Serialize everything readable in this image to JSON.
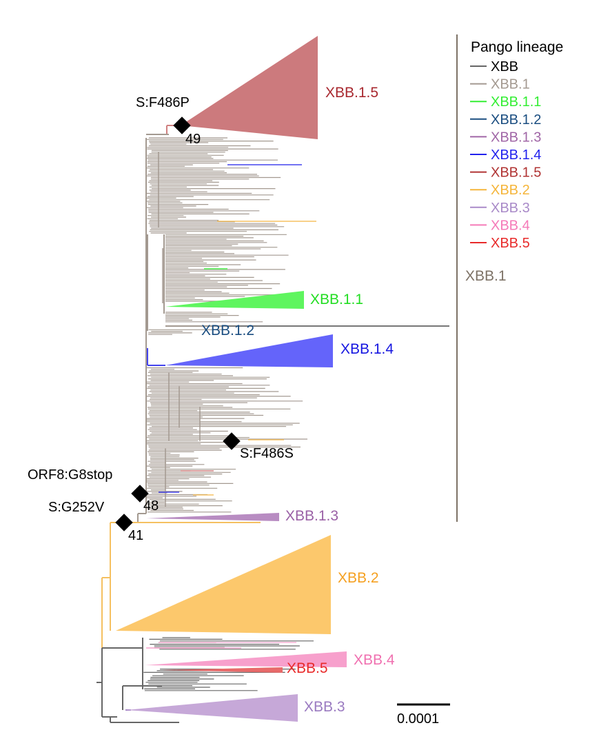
{
  "legend": {
    "title": "Pango lineage",
    "entries": [
      {
        "label": "XBB",
        "color": "#666666"
      },
      {
        "label": "XBB.1",
        "color": "#a39990"
      },
      {
        "label": "XBB.1.1",
        "color": "#33ee33"
      },
      {
        "label": "XBB.1.2",
        "color": "#1a4d80"
      },
      {
        "label": "XBB.1.3",
        "color": "#a066a6"
      },
      {
        "label": "XBB.1.4",
        "color": "#2222ee"
      },
      {
        "label": "XBB.1.5",
        "color": "#b03333"
      },
      {
        "label": "XBB.2",
        "color": "#f5b53a"
      },
      {
        "label": "XBB.3",
        "color": "#a98ac8"
      },
      {
        "label": "XBB.4",
        "color": "#f57ab8"
      },
      {
        "label": "XBB.5",
        "color": "#e82a2a"
      }
    ]
  },
  "bracket": {
    "label": "XBB.1",
    "color": "#7d7266"
  },
  "clades": {
    "xbb_1_5": {
      "label": "XBB.1.5",
      "label_color": "#a8282f",
      "fill": "#cc7a7d"
    },
    "xbb_1_1": {
      "label": "XBB.1.1",
      "label_color": "#22dd22",
      "fill": "#5ff55f"
    },
    "xbb_1_2": {
      "label": "XBB.1.2",
      "label_color": "#1a4d80"
    },
    "xbb_1_4": {
      "label": "XBB.1.4",
      "label_color": "#1515e0",
      "fill": "#6464fa"
    },
    "xbb_1_3": {
      "label": "XBB.1.3",
      "label_color": "#9a60a6",
      "fill": "#b88cc2"
    },
    "xbb_2": {
      "label": "XBB.2",
      "label_color": "#f5a020",
      "fill": "#fcc86c"
    },
    "xbb_4": {
      "label": "XBB.4",
      "label_color": "#f070b0",
      "fill": "#f7a0cc"
    },
    "xbb_5": {
      "label": "XBB.5",
      "label_color": "#e82a2a",
      "fill": "#e86a6a"
    },
    "xbb_3": {
      "label": "XBB.3",
      "label_color": "#9a7ac0",
      "fill": "#c6a8d8"
    }
  },
  "mutations": {
    "f486p": {
      "label": "S:F486P",
      "count": "49"
    },
    "f486s": {
      "label": "S:F486S"
    },
    "orf8": {
      "label": "ORF8:G8stop",
      "count": "48"
    },
    "g252v": {
      "label": "S:G252V",
      "count": "41"
    }
  },
  "scale_bar": {
    "label": "0.0001"
  }
}
